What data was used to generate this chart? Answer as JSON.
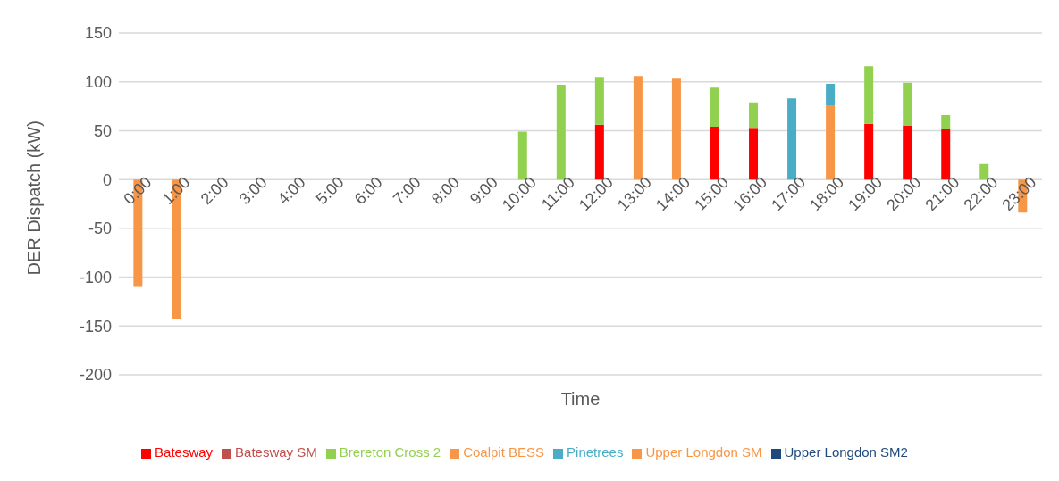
{
  "chart_data": {
    "type": "bar",
    "stacked": true,
    "xlabel": "Time",
    "ylabel": "DER Dispatch (kW)",
    "categories": [
      "0:00",
      "1:00",
      "2:00",
      "3:00",
      "4:00",
      "5:00",
      "6:00",
      "7:00",
      "8:00",
      "9:00",
      "10:00",
      "11:00",
      "12:00",
      "13:00",
      "14:00",
      "15:00",
      "16:00",
      "17:00",
      "18:00",
      "19:00",
      "20:00",
      "21:00",
      "22:00",
      "23:00"
    ],
    "series": [
      {
        "name": "Batesway",
        "color": "#ff0000",
        "values": [
          null,
          null,
          null,
          null,
          null,
          null,
          null,
          null,
          null,
          null,
          null,
          null,
          56,
          null,
          null,
          54,
          53,
          null,
          null,
          57,
          55,
          52,
          null,
          null
        ]
      },
      {
        "name": "Batesway SM",
        "color": "#c0504d",
        "values": [
          null,
          null,
          null,
          null,
          null,
          null,
          null,
          null,
          null,
          null,
          null,
          null,
          null,
          null,
          null,
          null,
          null,
          null,
          null,
          null,
          null,
          null,
          null,
          null
        ]
      },
      {
        "name": "Brereton Cross 2",
        "color": "#92d050",
        "values": [
          null,
          null,
          null,
          null,
          null,
          null,
          null,
          null,
          null,
          null,
          49,
          97,
          49,
          null,
          null,
          40,
          26,
          null,
          null,
          59,
          44,
          14,
          16,
          null
        ]
      },
      {
        "name": "Coalpit BESS",
        "color": "#f79646",
        "values": [
          -110,
          -143,
          null,
          null,
          null,
          null,
          null,
          null,
          null,
          null,
          null,
          null,
          null,
          106,
          104,
          null,
          null,
          null,
          76,
          null,
          null,
          null,
          null,
          -34
        ]
      },
      {
        "name": "Pinetrees",
        "color": "#4bacc6",
        "values": [
          null,
          null,
          null,
          null,
          null,
          null,
          null,
          null,
          null,
          null,
          null,
          null,
          null,
          null,
          null,
          null,
          null,
          83,
          22,
          null,
          null,
          null,
          null,
          null
        ]
      },
      {
        "name": "Upper Longdon SM",
        "color": "#f79646",
        "values": [
          null,
          null,
          null,
          null,
          null,
          null,
          null,
          null,
          null,
          null,
          null,
          null,
          null,
          null,
          null,
          null,
          null,
          null,
          null,
          null,
          null,
          null,
          null,
          null
        ]
      },
      {
        "name": "Upper Longdon SM2",
        "color": "#1f497d",
        "values": [
          null,
          null,
          null,
          null,
          null,
          null,
          null,
          null,
          null,
          null,
          null,
          null,
          null,
          null,
          null,
          null,
          null,
          null,
          null,
          null,
          null,
          null,
          null,
          null
        ]
      }
    ],
    "ylim": [
      -200,
      150
    ],
    "yticks": [
      -200,
      -150,
      -100,
      -50,
      0,
      50,
      100,
      150
    ],
    "grid": "y",
    "legend": "bottom"
  }
}
